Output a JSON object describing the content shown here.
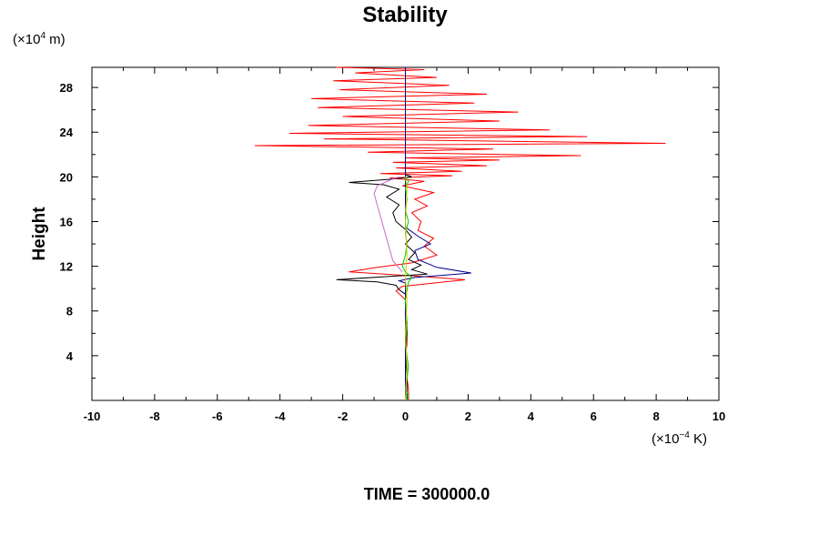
{
  "chart_data": {
    "type": "line",
    "title": "Stability",
    "ylabel": "Height",
    "y_unit": {
      "pre": "(×10",
      "exp": "4",
      "post": " m)"
    },
    "x_unit": {
      "pre": "(×10",
      "exp": "−4",
      "post": " K)"
    },
    "footer": "TIME = 300000.0",
    "xlim": [
      -10,
      10
    ],
    "ylim": [
      0,
      29.8
    ],
    "x_ticks": [
      -10,
      -8,
      -6,
      -4,
      -2,
      0,
      2,
      4,
      6,
      8,
      10
    ],
    "y_ticks": [
      4,
      8,
      12,
      16,
      20,
      24,
      28
    ],
    "grid": false,
    "series": [
      {
        "color": "#ff0000",
        "points": [
          [
            0.1,
            0
          ],
          [
            0.1,
            1
          ],
          [
            0.05,
            2
          ],
          [
            0.05,
            3
          ],
          [
            0.0,
            4
          ],
          [
            0.05,
            5
          ],
          [
            0.05,
            6
          ],
          [
            0.05,
            7
          ],
          [
            0.0,
            8
          ],
          [
            0.0,
            9
          ],
          [
            -0.3,
            9.8
          ],
          [
            -0.1,
            10.2
          ],
          [
            1.9,
            10.8
          ],
          [
            0.5,
            11.1
          ],
          [
            -1.8,
            11.5
          ],
          [
            -0.9,
            11.9
          ],
          [
            0.2,
            12.3
          ],
          [
            1.0,
            13.0
          ],
          [
            0.6,
            13.8
          ],
          [
            0.9,
            14.5
          ],
          [
            0.4,
            15.2
          ],
          [
            0.5,
            16.0
          ],
          [
            0.2,
            16.8
          ],
          [
            0.7,
            17.4
          ],
          [
            0.3,
            18.0
          ],
          [
            0.9,
            18.6
          ],
          [
            -0.1,
            19.2
          ],
          [
            0.6,
            19.6
          ],
          [
            -0.5,
            19.9
          ],
          [
            1.5,
            20.1
          ],
          [
            -0.8,
            20.3
          ],
          [
            1.8,
            20.5
          ],
          [
            -0.3,
            20.8
          ],
          [
            2.6,
            21.0
          ],
          [
            -0.4,
            21.3
          ],
          [
            3.0,
            21.5
          ],
          [
            0.0,
            21.7
          ],
          [
            5.6,
            21.9
          ],
          [
            -1.2,
            22.2
          ],
          [
            2.8,
            22.5
          ],
          [
            -4.8,
            22.8
          ],
          [
            8.3,
            23.0
          ],
          [
            -2.6,
            23.4
          ],
          [
            5.8,
            23.6
          ],
          [
            -3.7,
            23.9
          ],
          [
            4.6,
            24.2
          ],
          [
            -3.1,
            24.6
          ],
          [
            3.0,
            25.0
          ],
          [
            -2.0,
            25.4
          ],
          [
            3.6,
            25.8
          ],
          [
            -2.8,
            26.2
          ],
          [
            2.2,
            26.6
          ],
          [
            -3.0,
            27.0
          ],
          [
            2.6,
            27.4
          ],
          [
            -2.1,
            27.8
          ],
          [
            1.4,
            28.2
          ],
          [
            -2.3,
            28.6
          ],
          [
            1.0,
            28.9
          ],
          [
            -1.6,
            29.3
          ],
          [
            0.6,
            29.6
          ],
          [
            -2.2,
            29.8
          ]
        ]
      },
      {
        "color": "#000000",
        "points": [
          [
            0.05,
            0
          ],
          [
            0.05,
            2
          ],
          [
            0.0,
            4
          ],
          [
            0.05,
            6
          ],
          [
            0.0,
            8
          ],
          [
            0.0,
            9.5
          ],
          [
            -0.2,
            9.9
          ],
          [
            -0.3,
            10.3
          ],
          [
            -0.9,
            10.6
          ],
          [
            -2.2,
            10.8
          ],
          [
            -0.5,
            11.1
          ],
          [
            0.7,
            11.3
          ],
          [
            0.2,
            11.7
          ],
          [
            0.5,
            12.1
          ],
          [
            0.1,
            12.6
          ],
          [
            0.3,
            13.2
          ],
          [
            0.0,
            14.0
          ],
          [
            0.2,
            14.6
          ],
          [
            0.0,
            15.3
          ],
          [
            -0.3,
            16.0
          ],
          [
            -0.4,
            16.8
          ],
          [
            -0.2,
            17.5
          ],
          [
            -0.6,
            18.2
          ],
          [
            -0.2,
            18.9
          ],
          [
            -0.7,
            19.3
          ],
          [
            -1.8,
            19.5
          ],
          [
            -0.4,
            19.8
          ],
          [
            0.2,
            20.0
          ],
          [
            0.0,
            20.2
          ]
        ]
      },
      {
        "color": "#00008b",
        "points": [
          [
            0.0,
            0
          ],
          [
            0.0,
            5
          ],
          [
            0.0,
            10.5
          ],
          [
            -0.2,
            10.7
          ],
          [
            0.3,
            11.0
          ],
          [
            2.1,
            11.4
          ],
          [
            1.0,
            11.9
          ],
          [
            0.4,
            12.6
          ],
          [
            0.3,
            13.4
          ],
          [
            0.8,
            14.0
          ],
          [
            0.4,
            14.7
          ],
          [
            0.0,
            15.5
          ],
          [
            0.0,
            29.8
          ]
        ]
      },
      {
        "color": "#cc66cc",
        "points": [
          [
            -0.1,
            11.5
          ],
          [
            -0.4,
            12.5
          ],
          [
            -0.5,
            13.5
          ],
          [
            -0.6,
            14.5
          ],
          [
            -0.7,
            15.5
          ],
          [
            -0.8,
            16.5
          ],
          [
            -0.9,
            17.5
          ],
          [
            -1.0,
            18.5
          ],
          [
            -0.9,
            19.2
          ],
          [
            -0.5,
            19.7
          ],
          [
            -0.2,
            20.0
          ]
        ]
      },
      {
        "color": "#00cc00",
        "points": [
          [
            0.05,
            0
          ],
          [
            0.1,
            0.4
          ],
          [
            0.0,
            1
          ],
          [
            0.1,
            3
          ],
          [
            0.0,
            5
          ],
          [
            0.05,
            7
          ],
          [
            0.0,
            9
          ],
          [
            0.1,
            10.6
          ],
          [
            0.2,
            11.0
          ],
          [
            0.0,
            11.5
          ],
          [
            -0.1,
            12
          ],
          [
            0.0,
            13
          ],
          [
            0.05,
            14
          ],
          [
            0.0,
            15
          ],
          [
            0.1,
            16
          ],
          [
            0.0,
            17
          ],
          [
            0.05,
            18
          ],
          [
            0.0,
            19
          ],
          [
            0.1,
            19.6
          ],
          [
            0.0,
            20.0
          ]
        ]
      },
      {
        "color": "#cccc00",
        "points": [
          [
            0.0,
            0
          ],
          [
            0.05,
            3
          ],
          [
            0.0,
            6
          ],
          [
            0.05,
            9
          ],
          [
            0.0,
            11
          ],
          [
            0.05,
            13
          ],
          [
            0.0,
            16
          ],
          [
            0.05,
            19
          ],
          [
            0.0,
            20.0
          ]
        ]
      }
    ]
  }
}
